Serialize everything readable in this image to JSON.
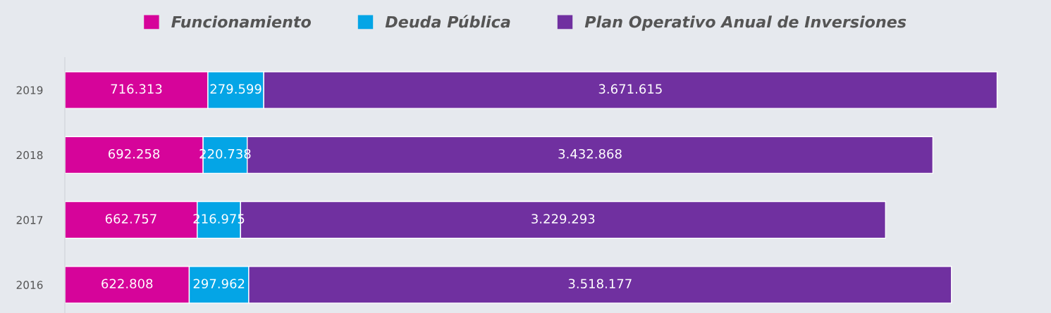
{
  "chart_data": {
    "type": "bar",
    "orientation": "horizontal",
    "stacked": true,
    "categories": [
      "2019",
      "2018",
      "2017",
      "2016"
    ],
    "series": [
      {
        "name": "Funcionamiento",
        "color": "#d6049a",
        "values": [
          716313,
          692258,
          662757,
          622808
        ],
        "value_labels": [
          "716.313",
          "692.258",
          "662.757",
          "622.808"
        ]
      },
      {
        "name": "Deuda Pública",
        "color": "#04a5e6",
        "values": [
          279599,
          220738,
          216975,
          297962
        ],
        "value_labels": [
          "279.599",
          "220.738",
          "216.975",
          "297.962"
        ]
      },
      {
        "name": "Plan Operativo Anual de Inversiones",
        "color": "#7030a0",
        "values": [
          3671615,
          3432868,
          3229293,
          3518177
        ],
        "value_labels": [
          "3.671.615",
          "3.432.868",
          "3.229.293",
          "3.518.177"
        ]
      }
    ],
    "xlim": [
      0,
      4920000
    ],
    "tick_labels": "y",
    "legend": "top",
    "grid": false
  }
}
